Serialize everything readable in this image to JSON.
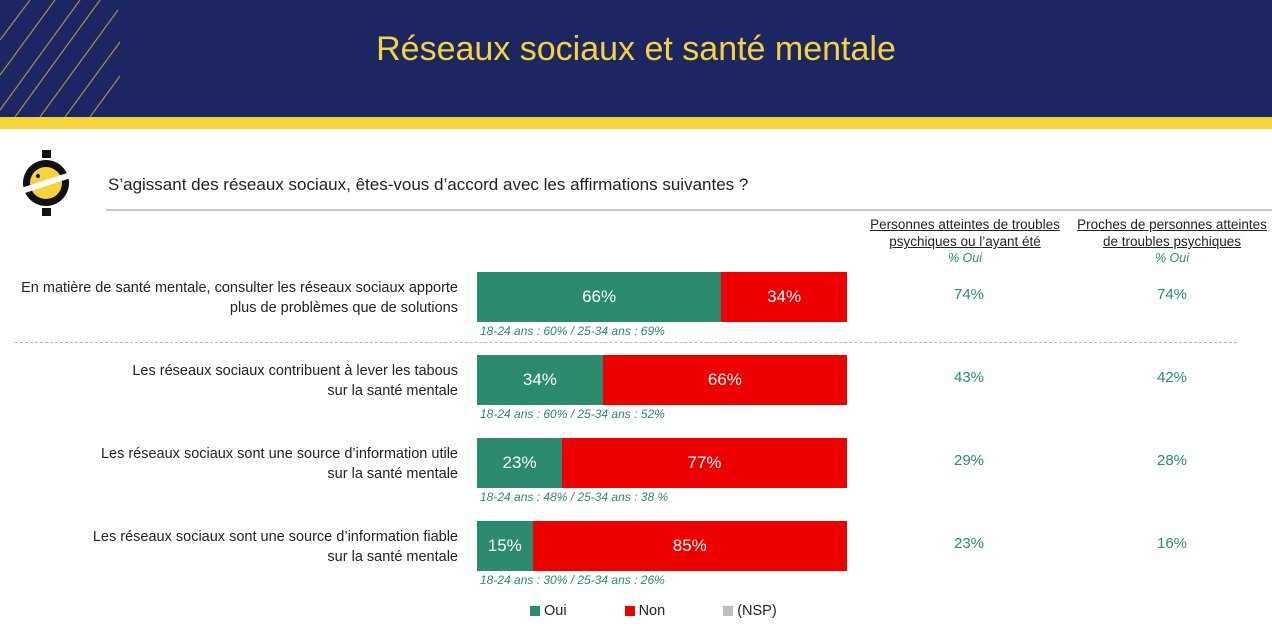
{
  "header": {
    "title": "Réseaux sociaux et santé mentale"
  },
  "question": "S’agissant des réseaux sociaux, êtes-vous d’accord avec les affirmations suivantes ?",
  "columns": [
    {
      "line1": "Personnes atteintes de troubles",
      "line2": "psychiques ou l’ayant été",
      "sub": "% Oui"
    },
    {
      "line1": "Proches de personnes atteintes",
      "line2": "de troubles psychiques",
      "sub": "% Oui"
    }
  ],
  "colors": {
    "oui": "#2b8a6f",
    "non": "#ee0000",
    "nsp": "#bfbfbf",
    "header_bg": "#1b2663",
    "header_accent": "#f5d33b"
  },
  "chart_data": {
    "type": "bar",
    "orientation": "horizontal-stacked",
    "categories": [
      [
        "En matière de santé mentale, consulter les réseaux sociaux apporte",
        "plus de problèmes que de solutions"
      ],
      [
        "Les réseaux sociaux contribuent à lever les tabous",
        "sur la santé mentale"
      ],
      [
        "Les réseaux sociaux sont une source d’information utile",
        "sur la santé mentale"
      ],
      [
        "Les réseaux sociaux sont une source d’information fiable",
        "sur la santé mentale"
      ]
    ],
    "series": [
      {
        "name": "Oui",
        "values": [
          66,
          34,
          23,
          15
        ],
        "labels": [
          "66%",
          "34%",
          "23%",
          "15%"
        ]
      },
      {
        "name": "Non",
        "values": [
          34,
          66,
          77,
          85
        ],
        "labels": [
          "34%",
          "66%",
          "77%",
          "85%"
        ]
      },
      {
        "name": "(NSP)",
        "values": [
          0,
          0,
          0,
          0
        ],
        "labels": [
          "",
          "",
          "",
          ""
        ]
      }
    ],
    "age_notes": [
      "18-24 ans : 60% / 25-34 ans : 69%",
      "18-24 ans : 60% / 25-34 ans : 52%",
      "18-24 ans : 48% / 25-34 ans : 38 %",
      "18-24 ans : 30% / 25-34 ans : 26%"
    ],
    "subgroup_values": [
      [
        "74%",
        "74%"
      ],
      [
        "43%",
        "42%"
      ],
      [
        "29%",
        "28%"
      ],
      [
        "23%",
        "16%"
      ]
    ],
    "xlim": [
      0,
      100
    ],
    "legend_position": "bottom"
  }
}
